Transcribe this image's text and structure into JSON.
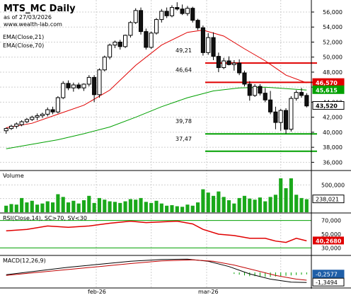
{
  "header": {
    "title": "MTS_MC Daily",
    "asof": "as of 27/03/2026",
    "site": "www.wealth-lab.com"
  },
  "legend": {
    "ema21": "EMA(Close,21)",
    "ema70": "EMA(Close,70)"
  },
  "colors": {
    "grid": "#cfcfcf",
    "red": "#e00000",
    "green": "#00a000",
    "volume": "#1aa81a",
    "candle_up": "#ffffff",
    "candle_down": "#111111",
    "ema21": "#e00000",
    "ema70": "#00a000",
    "badge_blue": "#1f5fa8",
    "macd": "#000000",
    "macd_signal": "#c00000",
    "macd_hist": "#00a000"
  },
  "chart_data": {
    "type": "candlestick",
    "x_labels": [
      "feb-26",
      "mar-26"
    ],
    "price_axis": {
      "ticks": [
        "56,000",
        "54,000",
        "52,000",
        "50,000",
        "48,000",
        "46,000",
        "44,000",
        "42,000",
        "40,000",
        "38,000",
        "36,000"
      ],
      "ylim": [
        35,
        57.6
      ]
    },
    "levels": [
      {
        "label": "49,21",
        "value": 49.21,
        "color": "red"
      },
      {
        "label": "46,64",
        "value": 46.64,
        "color": "red"
      },
      {
        "label": "39,78",
        "value": 39.78,
        "color": "green"
      },
      {
        "label": "37,47",
        "value": 37.47,
        "color": "green"
      }
    ],
    "price_badges": [
      {
        "label": "46,570",
        "value": 46.57,
        "color": "red"
      },
      {
        "label": "45,615",
        "value": 45.615,
        "color": "green"
      },
      {
        "label": "43,520",
        "value": 43.52,
        "color": "black"
      }
    ],
    "candles": [
      [
        40.2,
        40.6,
        39.8,
        40.5
      ],
      [
        40.5,
        41.0,
        40.3,
        40.8
      ],
      [
        40.8,
        41.3,
        40.5,
        41.1
      ],
      [
        41.0,
        41.6,
        40.8,
        41.4
      ],
      [
        41.4,
        41.9,
        41.2,
        41.7
      ],
      [
        41.7,
        42.2,
        41.5,
        42.0
      ],
      [
        42.0,
        42.5,
        41.6,
        42.2
      ],
      [
        42.2,
        42.6,
        41.9,
        42.4
      ],
      [
        42.4,
        43.3,
        42.1,
        43.0
      ],
      [
        43.0,
        43.4,
        42.4,
        42.7
      ],
      [
        42.7,
        44.8,
        42.5,
        44.6
      ],
      [
        44.6,
        46.8,
        44.4,
        46.5
      ],
      [
        46.5,
        46.9,
        45.6,
        45.9
      ],
      [
        45.9,
        46.6,
        45.4,
        46.3
      ],
      [
        46.3,
        46.6,
        45.7,
        45.9
      ],
      [
        45.9,
        46.5,
        45.5,
        46.4
      ],
      [
        46.4,
        47.6,
        46.1,
        47.3
      ],
      [
        47.3,
        47.6,
        44.0,
        45.0
      ],
      [
        45.0,
        48.5,
        44.6,
        48.3
      ],
      [
        48.3,
        50.2,
        48.1,
        50.0
      ],
      [
        50.0,
        51.8,
        49.7,
        51.6
      ],
      [
        51.6,
        52.2,
        51.2,
        52.0
      ],
      [
        52.0,
        52.3,
        51.0,
        51.4
      ],
      [
        51.4,
        53.0,
        51.2,
        52.9
      ],
      [
        52.9,
        54.8,
        52.6,
        54.6
      ],
      [
        54.6,
        56.5,
        54.4,
        56.2
      ],
      [
        56.2,
        56.6,
        53.0,
        53.4
      ],
      [
        53.4,
        53.8,
        51.0,
        51.3
      ],
      [
        51.3,
        53.4,
        51.1,
        53.2
      ],
      [
        53.2,
        55.2,
        53.0,
        55.0
      ],
      [
        55.0,
        56.4,
        54.6,
        56.1
      ],
      [
        56.1,
        56.6,
        55.2,
        55.5
      ],
      [
        55.5,
        56.9,
        55.3,
        56.6
      ],
      [
        56.6,
        57.3,
        56.2,
        56.4
      ],
      [
        56.4,
        57.0,
        55.6,
        55.8
      ],
      [
        55.8,
        56.8,
        55.5,
        56.5
      ],
      [
        56.5,
        56.7,
        54.6,
        54.9
      ],
      [
        54.9,
        55.1,
        53.6,
        53.9
      ],
      [
        53.9,
        54.2,
        50.2,
        50.6
      ],
      [
        50.6,
        53.2,
        50.3,
        52.6
      ],
      [
        52.6,
        53.3,
        49.6,
        50.1
      ],
      [
        50.1,
        50.6,
        48.0,
        48.6
      ],
      [
        48.6,
        49.9,
        48.4,
        49.5
      ],
      [
        49.5,
        50.1,
        48.9,
        49.0
      ],
      [
        49.0,
        49.6,
        48.2,
        49.2
      ],
      [
        49.2,
        49.7,
        47.6,
        47.9
      ],
      [
        47.9,
        48.2,
        46.1,
        46.4
      ],
      [
        46.4,
        46.8,
        44.2,
        44.9
      ],
      [
        44.9,
        46.4,
        44.7,
        46.1
      ],
      [
        46.1,
        46.4,
        44.9,
        45.2
      ],
      [
        45.2,
        45.9,
        44.0,
        44.3
      ],
      [
        44.3,
        45.5,
        42.4,
        42.7
      ],
      [
        42.7,
        43.4,
        40.4,
        41.3
      ],
      [
        41.3,
        43.1,
        40.2,
        42.9
      ],
      [
        42.9,
        43.2,
        39.8,
        40.4
      ],
      [
        40.4,
        44.8,
        40.1,
        44.5
      ],
      [
        44.5,
        45.6,
        44.2,
        45.3
      ],
      [
        45.3,
        45.9,
        44.6,
        44.9
      ],
      [
        44.9,
        45.2,
        43.3,
        43.5
      ]
    ],
    "ema21": [
      [
        0,
        40.6
      ],
      [
        5,
        41.2
      ],
      [
        10,
        42.4
      ],
      [
        15,
        43.6
      ],
      [
        20,
        45.6
      ],
      [
        25,
        48.9
      ],
      [
        30,
        51.6
      ],
      [
        35,
        53.3
      ],
      [
        38,
        53.6
      ],
      [
        42,
        52.8
      ],
      [
        46,
        51.1
      ],
      [
        50,
        49.5
      ],
      [
        54,
        47.6
      ],
      [
        58,
        46.57
      ]
    ],
    "ema70": [
      [
        0,
        37.8
      ],
      [
        5,
        38.4
      ],
      [
        10,
        39.0
      ],
      [
        15,
        39.8
      ],
      [
        20,
        40.7
      ],
      [
        25,
        42.0
      ],
      [
        30,
        43.4
      ],
      [
        35,
        44.6
      ],
      [
        40,
        45.5
      ],
      [
        45,
        45.9
      ],
      [
        50,
        46.0
      ],
      [
        54,
        45.8
      ],
      [
        58,
        45.615
      ]
    ],
    "volume": {
      "label": "Volume",
      "ticks": [
        "500,000",
        "250,000"
      ],
      "last_label": "238,021",
      "ylim": [
        0,
        750
      ],
      "values": [
        120,
        150,
        140,
        260,
        180,
        210,
        140,
        160,
        200,
        180,
        330,
        280,
        180,
        210,
        160,
        220,
        300,
        170,
        260,
        230,
        200,
        190,
        170,
        200,
        240,
        230,
        260,
        190,
        170,
        210,
        160,
        120,
        130,
        110,
        100,
        140,
        120,
        180,
        420,
        360,
        300,
        380,
        280,
        220,
        160,
        260,
        300,
        250,
        230,
        270,
        200,
        280,
        320,
        620,
        440,
        620,
        320,
        260,
        238
      ]
    },
    "rsi": {
      "label": "RSI(Close,14), SC>70, SV<30",
      "ticks": [
        "70,000",
        "50,000",
        "30,000"
      ],
      "last_label": "40,2680",
      "ylim": [
        20,
        80
      ],
      "overbought": 70,
      "oversold": 30,
      "values": [
        [
          0,
          55
        ],
        [
          4,
          57
        ],
        [
          8,
          62
        ],
        [
          12,
          60
        ],
        [
          16,
          62
        ],
        [
          20,
          66
        ],
        [
          24,
          69
        ],
        [
          27,
          67
        ],
        [
          30,
          68
        ],
        [
          33,
          69
        ],
        [
          36,
          65
        ],
        [
          38,
          57
        ],
        [
          41,
          50
        ],
        [
          44,
          48
        ],
        [
          47,
          44
        ],
        [
          50,
          44
        ],
        [
          52,
          40
        ],
        [
          54,
          38
        ],
        [
          56,
          44
        ],
        [
          58,
          40.268
        ]
      ]
    },
    "macd": {
      "label": "MACD(12,26,9)",
      "ticks": [
        "-0,2577",
        "-1,3494"
      ],
      "ylim": [
        -2,
        2.2
      ],
      "macd_values": [
        [
          0,
          -0.3
        ],
        [
          6,
          0.2
        ],
        [
          12,
          0.7
        ],
        [
          18,
          1.1
        ],
        [
          24,
          1.5
        ],
        [
          30,
          1.75
        ],
        [
          35,
          1.8
        ],
        [
          39,
          1.5
        ],
        [
          43,
          0.8
        ],
        [
          47,
          -0.2
        ],
        [
          51,
          -0.9
        ],
        [
          55,
          -1.3
        ],
        [
          58,
          -1.3494
        ]
      ],
      "signal_values": [
        [
          0,
          -0.4
        ],
        [
          6,
          0.0
        ],
        [
          12,
          0.4
        ],
        [
          18,
          0.8
        ],
        [
          24,
          1.2
        ],
        [
          30,
          1.55
        ],
        [
          36,
          1.7
        ],
        [
          40,
          1.5
        ],
        [
          44,
          1.0
        ],
        [
          48,
          0.3
        ],
        [
          52,
          -0.4
        ],
        [
          56,
          -0.9
        ],
        [
          58,
          -1.05
        ]
      ],
      "hist_values": [
        [
          44,
          -0.2
        ],
        [
          45,
          -0.3
        ],
        [
          46,
          -0.4
        ],
        [
          47,
          -0.5
        ],
        [
          48,
          -0.5
        ],
        [
          49,
          -0.55
        ],
        [
          50,
          -0.6
        ],
        [
          51,
          -0.6
        ],
        [
          52,
          -0.55
        ],
        [
          53,
          -0.5
        ],
        [
          54,
          -0.45
        ],
        [
          55,
          -0.4
        ],
        [
          56,
          -0.35
        ],
        [
          57,
          -0.3
        ],
        [
          58,
          -0.2577
        ]
      ]
    }
  }
}
